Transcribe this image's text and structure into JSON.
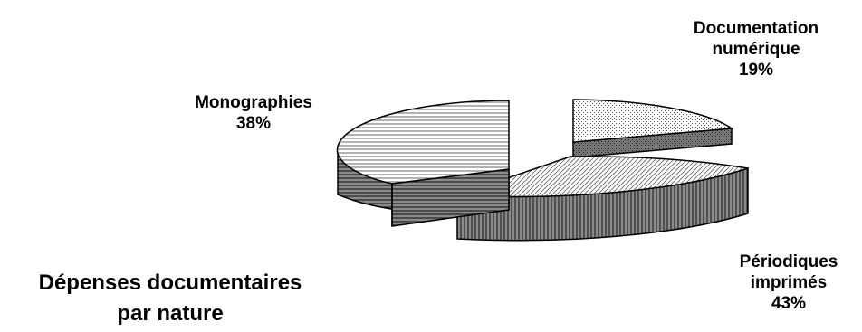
{
  "chart_data": {
    "type": "pie",
    "style": "3d-exploded",
    "title_lines": [
      "Dépenses documentaires",
      "par nature"
    ],
    "slices": [
      {
        "label_lines": [
          "Documentation",
          "numérique"
        ],
        "value": 19,
        "value_label": "19%",
        "pattern": "dots"
      },
      {
        "label_lines": [
          "Périodiques",
          "imprimés"
        ],
        "value": 43,
        "value_label": "43%",
        "pattern": "diagonal"
      },
      {
        "label_lines": [
          "Monographies"
        ],
        "value": 38,
        "value_label": "38%",
        "pattern": "horizontal"
      }
    ],
    "legend": "none"
  }
}
